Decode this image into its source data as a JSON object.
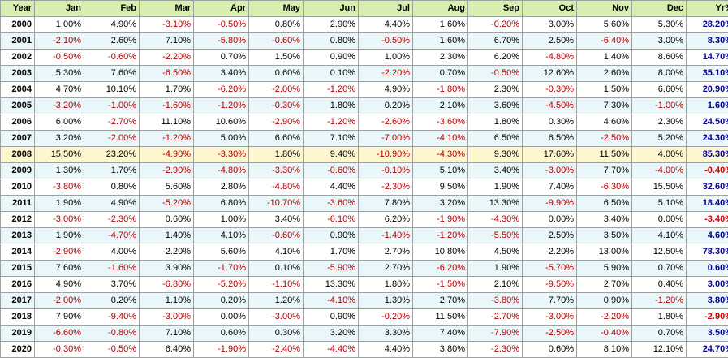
{
  "table": {
    "headers": [
      "Year",
      "Jan",
      "Feb",
      "Mar",
      "Apr",
      "May",
      "Jun",
      "Jul",
      "Aug",
      "Sep",
      "Oct",
      "Nov",
      "Dec",
      "Yr%"
    ],
    "highlight_year": "2008",
    "rows": [
      {
        "year": "2000",
        "values": [
          "1.00%",
          "4.90%",
          "-3.10%",
          "-0.50%",
          "0.80%",
          "2.90%",
          "4.40%",
          "1.60%",
          "-0.20%",
          "3.00%",
          "5.60%",
          "5.30%"
        ],
        "yr": "28.20%"
      },
      {
        "year": "2001",
        "values": [
          "-2.10%",
          "2.60%",
          "7.10%",
          "-5.80%",
          "-0.60%",
          "0.80%",
          "-0.50%",
          "1.60%",
          "6.70%",
          "2.50%",
          "-6.40%",
          "3.00%"
        ],
        "yr": "8.30%"
      },
      {
        "year": "2002",
        "values": [
          "-0.50%",
          "-0.60%",
          "-2.20%",
          "0.70%",
          "1.50%",
          "0.90%",
          "1.00%",
          "2.30%",
          "6.20%",
          "-4.80%",
          "1.40%",
          "8.60%"
        ],
        "yr": "14.70%"
      },
      {
        "year": "2003",
        "values": [
          "5.30%",
          "7.60%",
          "-6.50%",
          "3.40%",
          "0.60%",
          "0.10%",
          "-2.20%",
          "0.70%",
          "-0.50%",
          "12.60%",
          "2.60%",
          "8.00%"
        ],
        "yr": "35.10%"
      },
      {
        "year": "2004",
        "values": [
          "4.70%",
          "10.10%",
          "1.70%",
          "-6.20%",
          "-2.00%",
          "-1.20%",
          "4.90%",
          "-1.80%",
          "2.30%",
          "-0.30%",
          "1.50%",
          "6.60%"
        ],
        "yr": "20.90%"
      },
      {
        "year": "2005",
        "values": [
          "-3.20%",
          "-1.00%",
          "-1.60%",
          "-1.20%",
          "-0.30%",
          "1.80%",
          "0.20%",
          "2.10%",
          "3.60%",
          "-4.50%",
          "7.30%",
          "-1.00%"
        ],
        "yr": "1.60%"
      },
      {
        "year": "2006",
        "values": [
          "6.00%",
          "-2.70%",
          "11.10%",
          "10.60%",
          "-2.90%",
          "-1.20%",
          "-2.60%",
          "-3.60%",
          "1.80%",
          "0.30%",
          "4.60%",
          "2.30%"
        ],
        "yr": "24.50%"
      },
      {
        "year": "2007",
        "values": [
          "3.20%",
          "-2.00%",
          "-1.20%",
          "5.00%",
          "6.60%",
          "7.10%",
          "-7.00%",
          "-4.10%",
          "6.50%",
          "6.50%",
          "-2.50%",
          "5.20%"
        ],
        "yr": "24.30%"
      },
      {
        "year": "2008",
        "values": [
          "15.50%",
          "23.20%",
          "-4.90%",
          "-3.30%",
          "1.80%",
          "9.40%",
          "-10.90%",
          "-4.30%",
          "9.30%",
          "17.60%",
          "11.50%",
          "4.00%"
        ],
        "yr": "85.30%"
      },
      {
        "year": "2009",
        "values": [
          "1.30%",
          "1.70%",
          "-2.90%",
          "-4.80%",
          "-3.30%",
          "-0.60%",
          "-0.10%",
          "5.10%",
          "3.40%",
          "-3.00%",
          "7.70%",
          "-4.00%"
        ],
        "yr": "-0.40%"
      },
      {
        "year": "2010",
        "values": [
          "-3.80%",
          "0.80%",
          "5.60%",
          "2.80%",
          "-4.80%",
          "4.40%",
          "-2.30%",
          "9.50%",
          "1.90%",
          "7.40%",
          "-6.30%",
          "15.50%"
        ],
        "yr": "32.60%"
      },
      {
        "year": "2011",
        "values": [
          "1.90%",
          "4.90%",
          "-5.20%",
          "6.80%",
          "-10.70%",
          "-3.60%",
          "7.80%",
          "3.20%",
          "13.30%",
          "-9.90%",
          "6.50%",
          "5.10%"
        ],
        "yr": "18.40%"
      },
      {
        "year": "2012",
        "values": [
          "-3.00%",
          "-2.30%",
          "0.60%",
          "1.00%",
          "3.40%",
          "-6.10%",
          "6.20%",
          "-1.90%",
          "-4.30%",
          "0.00%",
          "3.40%",
          "0.00%"
        ],
        "yr": "-3.40%"
      },
      {
        "year": "2013",
        "values": [
          "1.90%",
          "-4.70%",
          "1.40%",
          "4.10%",
          "-0.60%",
          "0.90%",
          "-1.40%",
          "-1.20%",
          "-5.50%",
          "2.50%",
          "3.50%",
          "4.10%"
        ],
        "yr": "4.60%"
      },
      {
        "year": "2014",
        "values": [
          "-2.90%",
          "4.00%",
          "2.20%",
          "5.60%",
          "4.10%",
          "1.70%",
          "2.70%",
          "10.80%",
          "4.50%",
          "2.20%",
          "13.00%",
          "12.50%"
        ],
        "yr": "78.30%"
      },
      {
        "year": "2015",
        "values": [
          "7.60%",
          "-1.60%",
          "3.90%",
          "-1.70%",
          "0.10%",
          "-5.90%",
          "2.70%",
          "-6.20%",
          "1.90%",
          "-5.70%",
          "5.90%",
          "0.70%"
        ],
        "yr": "0.60%"
      },
      {
        "year": "2016",
        "values": [
          "4.90%",
          "3.70%",
          "-6.80%",
          "-5.20%",
          "-1.10%",
          "13.30%",
          "1.80%",
          "-1.50%",
          "2.10%",
          "-9.50%",
          "2.70%",
          "0.40%"
        ],
        "yr": "3.00%"
      },
      {
        "year": "2017",
        "values": [
          "-2.00%",
          "0.20%",
          "1.10%",
          "0.20%",
          "1.20%",
          "-4.10%",
          "1.30%",
          "2.70%",
          "-3.80%",
          "7.70%",
          "0.90%",
          "-1.20%"
        ],
        "yr": "3.80%"
      },
      {
        "year": "2018",
        "values": [
          "7.90%",
          "-9.40%",
          "-3.00%",
          "0.00%",
          "-3.00%",
          "0.90%",
          "-0.20%",
          "11.50%",
          "-2.70%",
          "-3.00%",
          "-2.20%",
          "1.80%"
        ],
        "yr": "-2.90%"
      },
      {
        "year": "2019",
        "values": [
          "-6.60%",
          "-0.80%",
          "7.10%",
          "0.60%",
          "0.30%",
          "3.20%",
          "3.30%",
          "7.40%",
          "-7.90%",
          "-2.50%",
          "-0.40%",
          "0.70%"
        ],
        "yr": "3.50%"
      },
      {
        "year": "2020",
        "values": [
          "-0.30%",
          "-0.50%",
          "6.40%",
          "-1.90%",
          "-2.40%",
          "-4.40%",
          "4.40%",
          "3.80%",
          "-2.30%",
          "0.60%",
          "8.10%",
          "12.10%"
        ],
        "yr": "24.70%"
      }
    ]
  },
  "colors": {
    "header_bg": "#d6efb0",
    "row_odd_bg": "#ffffff",
    "row_even_bg": "#e9f7fb",
    "row_highlight_bg": "#fdf6cf",
    "negative_text": "#b00000",
    "yr_positive_text": "#00008b",
    "yr_negative_text": "#cc0000"
  }
}
